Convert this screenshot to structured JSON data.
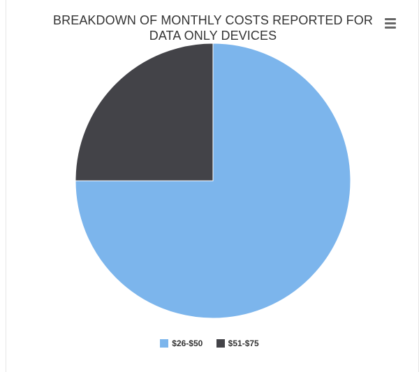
{
  "chart_data": {
    "type": "pie",
    "title": "BREAKDOWN OF MONTHLY COSTS REPORTED FOR DATA ONLY DEVICES",
    "categories": [
      "$26-$50",
      "$51-$75"
    ],
    "values": [
      75,
      25
    ],
    "colors": [
      "#7cb5ec",
      "#434348"
    ],
    "legend_position": "bottom-center",
    "start_angle": "top, clockwise"
  },
  "menu": {
    "icon": "hamburger-menu-icon"
  }
}
